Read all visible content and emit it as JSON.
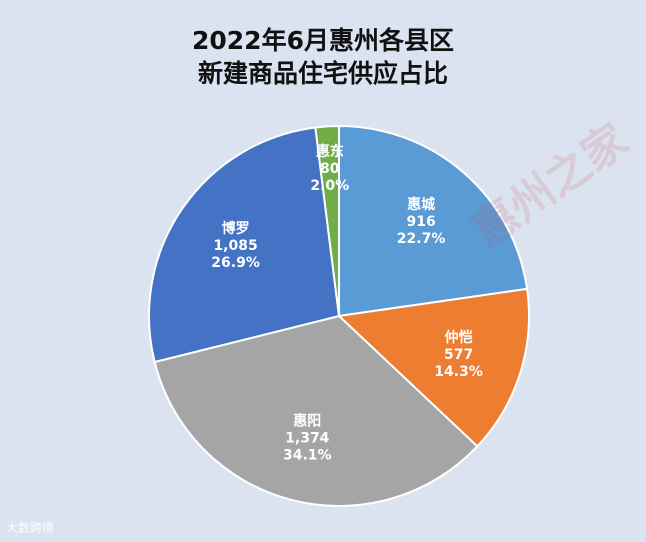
{
  "chart_data": {
    "type": "pie",
    "title_line1": "2022年6月惠州各县区",
    "title_line2": "新建商品住宅供应占比",
    "slices": [
      {
        "name": "惠城",
        "value": "916",
        "percent": "22.7%",
        "color": "#5b9bd5"
      },
      {
        "name": "仲恺",
        "value": "577",
        "percent": "14.3%",
        "color": "#ed7d31"
      },
      {
        "name": "惠阳",
        "value": "1,374",
        "percent": "34.1%",
        "color": "#a5a5a5"
      },
      {
        "name": "博罗",
        "value": "1,085",
        "percent": "26.9%",
        "color": "#4472c4"
      },
      {
        "name": "惠东",
        "value": "80",
        "percent": "2.0%",
        "color": "#70ad47"
      }
    ]
  },
  "watermark": "惠州之家",
  "source_logo": "大数跨境",
  "background_color": "#dbe3f0"
}
